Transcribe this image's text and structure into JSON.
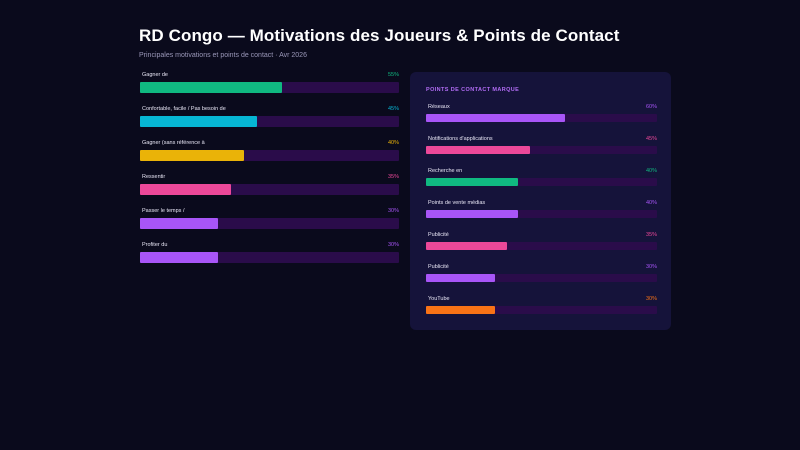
{
  "header": {
    "title": "RD Congo — Motivations des Joueurs & Points de Contact",
    "subtitle": "Principales motivations et points de contact · Avr 2026"
  },
  "colors": {
    "background": "#0a0a1c",
    "panel": "#15133a",
    "track": "#2a0c4a",
    "green": "#10b981",
    "cyan": "#06b6d4",
    "yellow": "#eab308",
    "pink": "#ec4899",
    "purple": "#a855f7",
    "orange": "#f97316"
  },
  "chart_data": [
    {
      "type": "bar",
      "orientation": "horizontal",
      "title": "",
      "categories": [
        "Gagner de",
        "Confortable, facile / Pas besoin de",
        "Gagner (sans référence à",
        "Ressentir",
        "Passer le temps /",
        "Profiter du"
      ],
      "values": [
        55,
        45,
        40,
        35,
        30,
        30
      ],
      "value_labels": [
        "55%",
        "45%",
        "40%",
        "35%",
        "30%",
        "30%"
      ],
      "bar_colors": [
        "#10b981",
        "#06b6d4",
        "#eab308",
        "#ec4899",
        "#a855f7",
        "#a855f7"
      ],
      "xlim": [
        0,
        100
      ],
      "grid": false,
      "legend": "none"
    },
    {
      "type": "bar",
      "orientation": "horizontal",
      "title": "POINTS DE CONTACT MARQUE",
      "categories": [
        "Réseaux",
        "Notifications d'applications",
        "Recherche en",
        "Points de vente médias",
        "Publicité",
        "Publicité",
        "YouTube"
      ],
      "values": [
        60,
        45,
        40,
        40,
        35,
        30,
        30
      ],
      "value_labels": [
        "60%",
        "45%",
        "40%",
        "40%",
        "35%",
        "30%",
        "30%"
      ],
      "bar_colors": [
        "#a855f7",
        "#ec4899",
        "#10b981",
        "#a855f7",
        "#ec4899",
        "#a855f7",
        "#f97316"
      ],
      "xlim": [
        0,
        100
      ],
      "grid": false,
      "legend": "none"
    }
  ]
}
